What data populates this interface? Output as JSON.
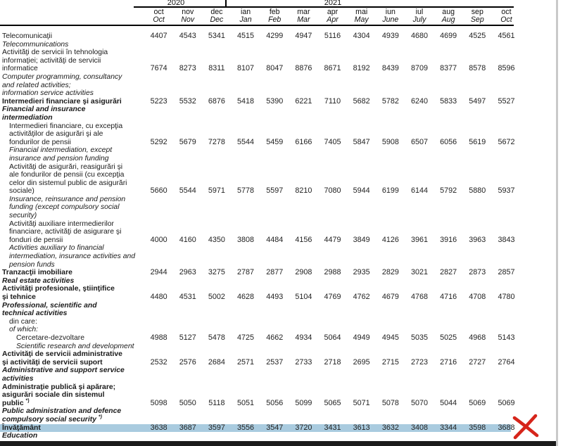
{
  "header": {
    "year_groups": [
      {
        "label": "2020",
        "columns": 3
      },
      {
        "label": "2021",
        "columns": 10
      }
    ],
    "months_ro": [
      "oct",
      "nov",
      "dec",
      "ian",
      "feb",
      "mar",
      "apr",
      "mai",
      "iun",
      "iul",
      "aug",
      "sep",
      "oct"
    ],
    "months_en": [
      "Oct",
      "Nov",
      "Dec",
      "Jan",
      "Feb",
      "Mar",
      "Apr",
      "May",
      "June",
      "July",
      "Aug",
      "Sep",
      "Oct"
    ]
  },
  "rows": [
    {
      "lines": [
        {
          "text": "Telecomunicaţii",
          "style": "ro",
          "indent": 0,
          "values_here": true
        },
        {
          "text": "Telecommunications",
          "style": "en",
          "indent": 0
        }
      ],
      "values": [
        4407,
        4543,
        5341,
        4515,
        4299,
        4947,
        5116,
        4304,
        4939,
        4680,
        4699,
        4525,
        4561
      ]
    },
    {
      "lines": [
        {
          "text": "Activităţi de servicii în tehnologia",
          "style": "ro",
          "indent": 0
        },
        {
          "text": "informaţiei; activităţi de servicii",
          "style": "ro",
          "indent": 0
        },
        {
          "text": "informatice",
          "style": "ro",
          "indent": 0,
          "values_here": true
        },
        {
          "text": "Computer programming, consultancy",
          "style": "en",
          "indent": 0
        },
        {
          "text": "and related activities;",
          "style": "en",
          "indent": 0
        },
        {
          "text": "information service activities",
          "style": "en",
          "indent": 0
        }
      ],
      "values": [
        7674,
        8273,
        8311,
        8107,
        8047,
        8876,
        8671,
        8192,
        8439,
        8709,
        8377,
        8578,
        8596
      ]
    },
    {
      "lines": [
        {
          "text": "Intermedieri financiare şi asigurări",
          "style": "ro-b",
          "indent": 0,
          "values_here": true
        },
        {
          "text": "Financial and insurance",
          "style": "en-b",
          "indent": 0
        },
        {
          "text": "intermediation",
          "style": "en-b",
          "indent": 0
        }
      ],
      "values": [
        5223,
        5532,
        6876,
        5418,
        5390,
        6221,
        7110,
        5682,
        5782,
        6240,
        5833,
        5497,
        5527
      ]
    },
    {
      "lines": [
        {
          "text": "Intermedieri financiare, cu excepţia",
          "style": "ro",
          "indent": 1
        },
        {
          "text": "activităţilor de asigurări şi ale",
          "style": "ro",
          "indent": 1
        },
        {
          "text": "fondurilor de pensii",
          "style": "ro",
          "indent": 1,
          "values_here": true
        },
        {
          "text": "Financial intermediation, except",
          "style": "en",
          "indent": 1
        },
        {
          "text": "insurance and pension funding",
          "style": "en",
          "indent": 1
        }
      ],
      "values": [
        5292,
        5679,
        7278,
        5544,
        5459,
        6166,
        7405,
        5847,
        5908,
        6507,
        6056,
        5619,
        5672
      ]
    },
    {
      "lines": [
        {
          "text": "Activităţi de asigurări, reasigurări şi",
          "style": "ro",
          "indent": 1
        },
        {
          "text": "ale fondurilor de pensii (cu excepţia",
          "style": "ro",
          "indent": 1
        },
        {
          "text": "celor din sistemul public de asigurări",
          "style": "ro",
          "indent": 1
        },
        {
          "text": "sociale)",
          "style": "ro",
          "indent": 1,
          "values_here": true
        },
        {
          "text": "Insurance, reinsurance and  pension",
          "style": "en",
          "indent": 1
        },
        {
          "text": "funding (except compulsory social",
          "style": "en",
          "indent": 1
        },
        {
          "text": "security)",
          "style": "en",
          "indent": 1
        }
      ],
      "values": [
        5660,
        5544,
        5971,
        5778,
        5597,
        8210,
        7080,
        5944,
        6199,
        6144,
        5792,
        5880,
        5937
      ]
    },
    {
      "lines": [
        {
          "text": "Activităţi auxiliare intermedierilor",
          "style": "ro",
          "indent": 1
        },
        {
          "text": "financiare, activităţi de asigurare şi",
          "style": "ro",
          "indent": 1
        },
        {
          "text": "fonduri de pensii",
          "style": "ro",
          "indent": 1,
          "values_here": true
        },
        {
          "text": "Activities auxiliary to financial",
          "style": "en",
          "indent": 1
        },
        {
          "text": "intermediation, insurance activities and",
          "style": "en",
          "indent": 1
        },
        {
          "text": "pension funds",
          "style": "en",
          "indent": 1
        }
      ],
      "values": [
        4000,
        4160,
        4350,
        3808,
        4484,
        4156,
        4479,
        3849,
        4126,
        3961,
        3916,
        3963,
        3843
      ]
    },
    {
      "lines": [
        {
          "text": "Tranzacţii imobiliare",
          "style": "ro-b",
          "indent": 0,
          "values_here": true
        },
        {
          "text": "Real estate activities",
          "style": "en-b",
          "indent": 0
        }
      ],
      "values": [
        2944,
        2963,
        3275,
        2787,
        2877,
        2908,
        2988,
        2935,
        2829,
        3021,
        2827,
        2873,
        2857
      ]
    },
    {
      "lines": [
        {
          "text": "Activităţi profesionale, ştiinţifice",
          "style": "ro-b",
          "indent": 0
        },
        {
          "text": "şi tehnice",
          "style": "ro-b",
          "indent": 0,
          "values_here": true
        },
        {
          "text": "Professional, scientific and",
          "style": "en-b",
          "indent": 0
        },
        {
          "text": "technical activities",
          "style": "en-b",
          "indent": 0
        }
      ],
      "values": [
        4480,
        4531,
        5002,
        4628,
        4493,
        5104,
        4769,
        4762,
        4679,
        4768,
        4716,
        4708,
        4780
      ]
    },
    {
      "lines": [
        {
          "text": "din care:",
          "style": "ro",
          "indent": 1
        },
        {
          "text": "of which:",
          "style": "en",
          "indent": 1
        }
      ],
      "values": []
    },
    {
      "lines": [
        {
          "text": "Cercetare-dezvoltare",
          "style": "ro",
          "indent": 2,
          "values_here": true
        },
        {
          "text": "Scientific research and development",
          "style": "en",
          "indent": 2
        }
      ],
      "values": [
        4988,
        5127,
        5478,
        4725,
        4662,
        4934,
        5064,
        4949,
        4945,
        5035,
        5025,
        4968,
        5143
      ]
    },
    {
      "lines": [
        {
          "text": "Activităţi de servicii administrative",
          "style": "ro-b",
          "indent": 0
        },
        {
          "text": "şi activităţi de servicii suport",
          "style": "ro-b",
          "indent": 0,
          "values_here": true
        },
        {
          "text": "Administrative and support service",
          "style": "en-b",
          "indent": 0
        },
        {
          "text": "activities",
          "style": "en-b",
          "indent": 0
        }
      ],
      "values": [
        2532,
        2576,
        2684,
        2571,
        2537,
        2733,
        2718,
        2695,
        2715,
        2723,
        2716,
        2727,
        2764
      ]
    },
    {
      "lines": [
        {
          "text": "Administraţie publică şi apărare;",
          "style": "ro-b",
          "indent": 0
        },
        {
          "text": "asigurări sociale din sistemul",
          "style": "ro-b",
          "indent": 0
        },
        {
          "text": "public ",
          "sup": "*)",
          "style": "ro-b",
          "indent": 0,
          "values_here": true
        },
        {
          "text": "Public administration and defence",
          "style": "en-b",
          "indent": 0
        },
        {
          "text": "compulsory social security ",
          "sup": "*)",
          "style": "en-b",
          "indent": 0
        }
      ],
      "values": [
        5098,
        5050,
        5118,
        5051,
        5056,
        5099,
        5065,
        5071,
        5078,
        5070,
        5044,
        5069,
        5069
      ]
    },
    {
      "lines": [
        {
          "text": "Învăţământ",
          "style": "ro-b",
          "indent": 0,
          "values_here": true,
          "highlight": true
        },
        {
          "text": "Education",
          "style": "en-b",
          "indent": 0
        }
      ],
      "values": [
        3638,
        3687,
        3597,
        3556,
        3547,
        3720,
        3431,
        3613,
        3632,
        3408,
        3344,
        3598,
        3688
      ]
    }
  ],
  "annotations": {
    "red_x_present": true
  },
  "colors": {
    "highlight_row": "#a9cbdf",
    "red_x": "#d6251b",
    "bottom_strip": "#1b1b1b",
    "page_edge": "#c9c9c9",
    "rule": "#000000"
  }
}
